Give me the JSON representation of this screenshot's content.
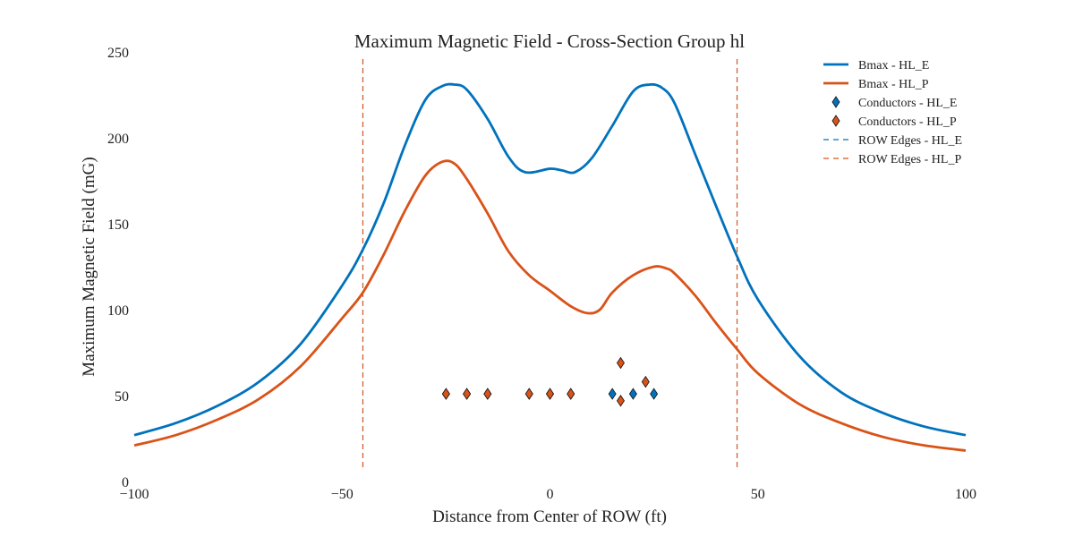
{
  "chart_data": {
    "type": "line",
    "title": "Maximum Magnetic Field - Cross-Section Group hl",
    "xlabel": "Distance from Center of ROW (ft)",
    "ylabel": "Maximum Magnetic Field (mG)",
    "xlim": [
      -100,
      100
    ],
    "ylim": [
      0,
      250
    ],
    "xticks": [
      -100,
      -50,
      0,
      50,
      100
    ],
    "xtick_labels": [
      "−100",
      "−50",
      "0",
      "50",
      "100"
    ],
    "yticks": [
      0,
      50,
      100,
      150,
      200,
      250
    ],
    "ytick_labels": [
      "0",
      "50",
      "100",
      "150",
      "200",
      "250"
    ],
    "grid": false,
    "legend_position": "top-right",
    "colors": {
      "HL_E": "#0072bd",
      "HL_P": "#d95319"
    },
    "series": [
      {
        "name": "Bmax - HL_E",
        "kind": "line",
        "color": "#0072bd",
        "x": [
          -100,
          -90,
          -80,
          -70,
          -60,
          -50,
          -45,
          -40,
          -35,
          -30,
          -26,
          -23,
          -20,
          -15,
          -10,
          -6,
          0,
          3,
          6,
          10,
          15,
          20,
          24,
          27,
          30,
          35,
          40,
          45,
          50,
          60,
          70,
          80,
          90,
          100
        ],
        "y": [
          27,
          34,
          44,
          58,
          80,
          114,
          135,
          162,
          195,
          222,
          230,
          231,
          228,
          211,
          189,
          180,
          182,
          181,
          180,
          188,
          207,
          227,
          231,
          229,
          220,
          190,
          160,
          131,
          106,
          73,
          52,
          40,
          32,
          27
        ]
      },
      {
        "name": "Bmax - HL_P",
        "kind": "line",
        "color": "#d95319",
        "x": [
          -100,
          -90,
          -80,
          -70,
          -60,
          -50,
          -45,
          -40,
          -35,
          -30,
          -26,
          -23,
          -20,
          -15,
          -10,
          -5,
          0,
          5,
          9,
          12,
          15,
          20,
          25,
          28,
          30,
          35,
          40,
          45,
          50,
          60,
          70,
          80,
          90,
          100
        ],
        "y": [
          21,
          27,
          36,
          48,
          67,
          95,
          110,
          132,
          157,
          178,
          186,
          185,
          176,
          156,
          134,
          120,
          111,
          102,
          98,
          100,
          110,
          120,
          125,
          124,
          121,
          108,
          92,
          77,
          63,
          45,
          34,
          26,
          21,
          18
        ]
      },
      {
        "name": "Conductors - HL_E",
        "kind": "scatter",
        "marker": "diamond",
        "color": "#0072bd",
        "x": [
          -25,
          -20,
          -15,
          -5,
          0,
          5,
          15,
          20,
          25
        ],
        "y": [
          51,
          51,
          51,
          51,
          51,
          51,
          51,
          51,
          51
        ]
      },
      {
        "name": "Conductors - HL_P",
        "kind": "scatter",
        "marker": "diamond",
        "color": "#d95319",
        "x": [
          -25,
          -20,
          -15,
          -5,
          0,
          5,
          17,
          17,
          23
        ],
        "y": [
          51,
          51,
          51,
          51,
          51,
          51,
          69,
          47,
          58
        ]
      },
      {
        "name": "ROW Edges - HL_E",
        "kind": "vline",
        "dashed": true,
        "color": "#0072bd",
        "x": [
          -45,
          45
        ]
      },
      {
        "name": "ROW Edges - HL_P",
        "kind": "vline",
        "dashed": true,
        "color": "#d95319",
        "x": [
          -45,
          45
        ]
      }
    ]
  }
}
